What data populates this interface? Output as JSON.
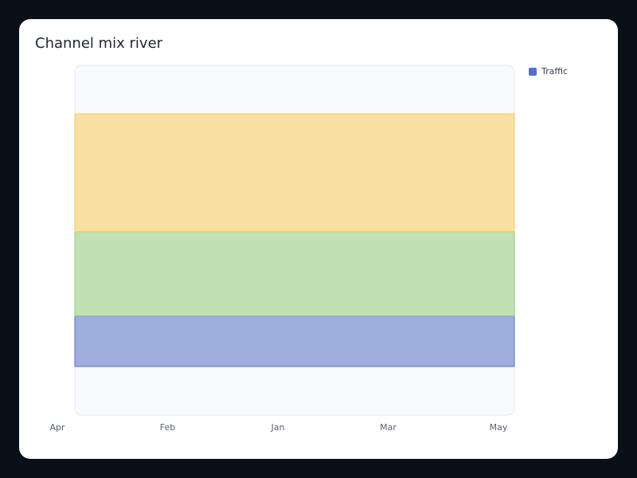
{
  "chart_data": {
    "type": "river",
    "title": "Channel mix river",
    "categories": [
      "Apr",
      "Feb",
      "Jan",
      "Mar",
      "May"
    ],
    "series": [
      {
        "name": "Traffic",
        "color": "#5470c6",
        "values": [
          30,
          30,
          30,
          30,
          30
        ]
      },
      {
        "color": "#91cc75",
        "values": [
          50,
          50,
          50,
          50,
          50
        ]
      },
      {
        "color": "#fac858",
        "values": [
          70,
          70,
          70,
          70,
          70
        ]
      }
    ]
  }
}
